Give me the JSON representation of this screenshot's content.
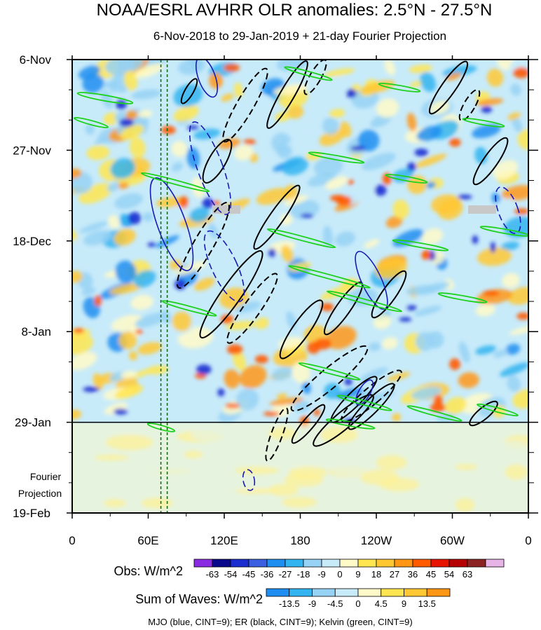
{
  "chart_data": {
    "type": "heatmap",
    "title": "NOAA/ESRL AVHRR OLR anomalies: 2.5°N - 27.5°N",
    "subtitle": "6-Nov-2018 to 29-Jan-2019 + 21-day Fourier Projection",
    "x_tick_labels": [
      "0",
      "60E",
      "120E",
      "180",
      "120W",
      "60W",
      "0"
    ],
    "x_tick_lons": [
      0,
      60,
      120,
      180,
      240,
      300,
      360
    ],
    "xlim": [
      0,
      360
    ],
    "y_tick_labels": [
      "6-Nov",
      "27-Nov",
      "18-Dec",
      "8-Jan",
      "29-Jan",
      "19-Feb"
    ],
    "y_tick_days": [
      0,
      21,
      42,
      63,
      84,
      105
    ],
    "ylim_days": [
      0,
      105
    ],
    "projection_start_day": 84,
    "projection_label_line1": "Fourier",
    "projection_label_line2": "Projection",
    "obs_legend": {
      "label": "Obs: W/m^2",
      "ticks": [
        "-63",
        "-54",
        "-45",
        "-36",
        "-27",
        "-18",
        "-9",
        "0",
        "9",
        "18",
        "27",
        "36",
        "45",
        "54",
        "63"
      ],
      "colors": [
        "#8a2be2",
        "#08088a",
        "#1a2ed0",
        "#3a5fe0",
        "#1e8ef0",
        "#32b4f0",
        "#96d2f5",
        "#c8ebfa",
        "#fffac8",
        "#ffe650",
        "#ffc832",
        "#ff9614",
        "#ff5a00",
        "#e61400",
        "#b40000",
        "#8c2323",
        "#e6b4e6"
      ]
    },
    "waves_legend": {
      "label": "Sum of Waves: W/m^2",
      "ticks": [
        "-13.5",
        "-9",
        "-4.5",
        "0",
        "4.5",
        "9",
        "13.5"
      ],
      "colors": [
        "#1e8ef0",
        "#32b4f0",
        "#96d2f5",
        "#c8ebfa",
        "#fffac8",
        "#ffe650",
        "#ffc832",
        "#ff9614"
      ]
    },
    "contour_note": "MJO (blue, CINT=9); ER (black, CINT=9); Kelvin (green, CINT=9)",
    "reference_lons": [
      70,
      75
    ]
  }
}
